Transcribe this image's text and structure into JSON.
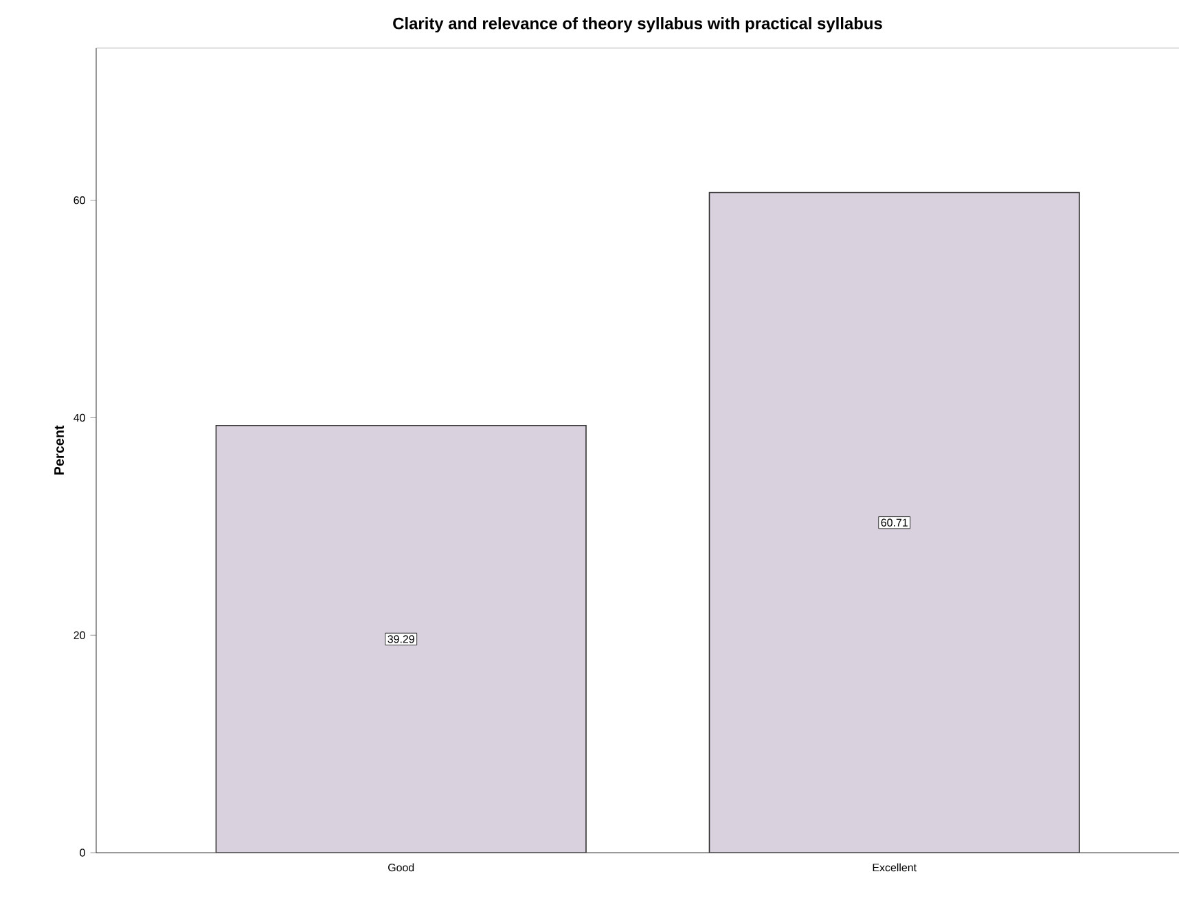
{
  "chart_data": {
    "type": "bar",
    "title": "Clarity and relevance of theory syllabus with practical syllabus",
    "ylabel": "Percent",
    "categories": [
      "Good",
      "Excellent"
    ],
    "values": [
      39.29,
      60.71
    ],
    "color": "#d9d1dd",
    "ylim": [
      0,
      74
    ],
    "yticks": [
      0,
      20,
      40,
      60
    ],
    "data_labels": true
  }
}
